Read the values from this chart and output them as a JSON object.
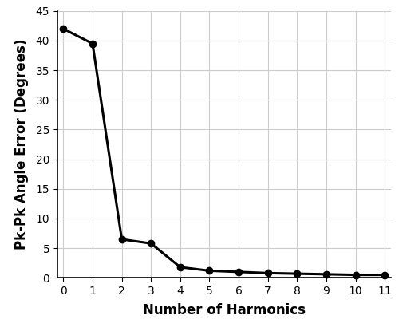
{
  "x": [
    0,
    1,
    2,
    3,
    4,
    5,
    6,
    7,
    8,
    9,
    10,
    11
  ],
  "y": [
    42.0,
    39.5,
    6.5,
    5.8,
    1.8,
    1.2,
    1.0,
    0.8,
    0.7,
    0.6,
    0.5,
    0.5
  ],
  "xlabel": "Number of Harmonics",
  "ylabel": "Pk-Pk Angle Error (Degrees)",
  "xlim": [
    -0.2,
    11.2
  ],
  "ylim": [
    0,
    45
  ],
  "yticks": [
    0,
    5,
    10,
    15,
    20,
    25,
    30,
    35,
    40,
    45
  ],
  "xticks": [
    0,
    1,
    2,
    3,
    4,
    5,
    6,
    7,
    8,
    9,
    10,
    11
  ],
  "line_color": "#000000",
  "marker": "o",
  "markersize": 6,
  "linewidth": 2.2,
  "grid_color": "#cccccc",
  "background_color": "#ffffff",
  "xlabel_fontsize": 12,
  "ylabel_fontsize": 12,
  "tick_fontsize": 10
}
